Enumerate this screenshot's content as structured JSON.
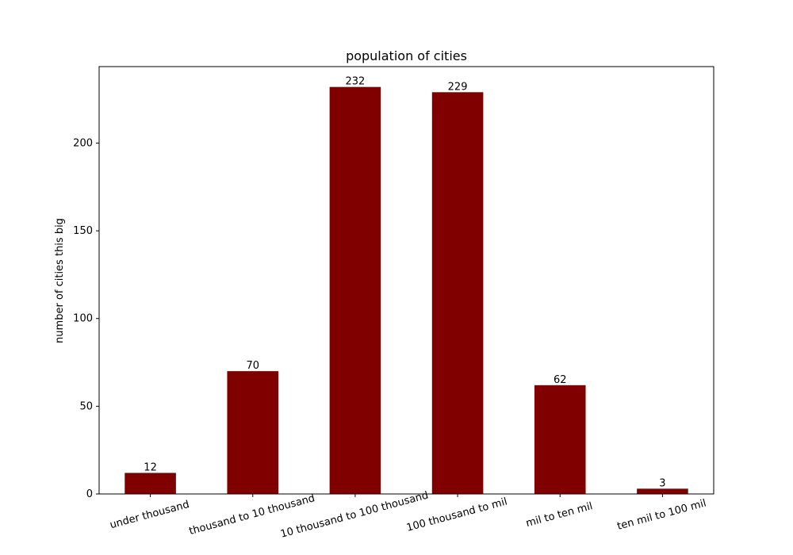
{
  "chart_data": {
    "type": "bar",
    "title": "population of cities",
    "xlabel": "",
    "ylabel": "number of cities this big",
    "categories": [
      "under thousand",
      "thousand to 10 thousand",
      "10 thousand to 100 thousand",
      "100 thousand to mil",
      "mil to ten mil",
      "ten mil to 100 mil"
    ],
    "values": [
      12,
      70,
      232,
      229,
      62,
      3
    ],
    "ylim": [
      0,
      243.6
    ],
    "yticks": [
      0,
      50,
      100,
      150,
      200
    ],
    "bar_color": "#800000",
    "grid": false,
    "legend": "none"
  }
}
